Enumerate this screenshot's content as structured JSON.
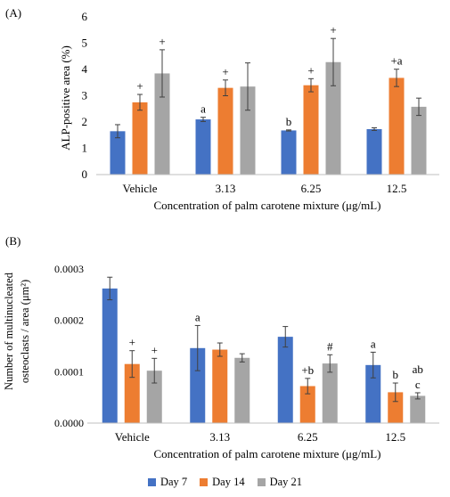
{
  "chart_data": [
    {
      "type": "bar",
      "panel_label": "(A)",
      "categories": [
        "Vehicle",
        "3.13",
        "6.25",
        "12.5"
      ],
      "xlabel": "Concentration  of palm carotene mixture  (μg/mL)",
      "ylabel": "ALP-positive  area (%)",
      "ylim": [
        0,
        6
      ],
      "yticks": [
        "0",
        "1",
        "2",
        "3",
        "4",
        "5",
        "6"
      ],
      "series": [
        {
          "name": "Day 7",
          "color": "#4472c4",
          "values": [
            1.65,
            2.1,
            1.68,
            1.73
          ],
          "errors": [
            0.25,
            0.08,
            0.02,
            0.05
          ],
          "annotations": [
            "",
            "a",
            "b",
            ""
          ]
        },
        {
          "name": "Day 14",
          "color": "#ed7d31",
          "values": [
            2.75,
            3.3,
            3.4,
            3.68
          ],
          "errors": [
            0.3,
            0.3,
            0.25,
            0.33
          ],
          "annotations": [
            "+",
            "+",
            "+",
            "+a"
          ]
        },
        {
          "name": "Day 21",
          "color": "#a5a5a5",
          "values": [
            3.85,
            3.35,
            4.28,
            2.58
          ],
          "errors": [
            0.9,
            0.9,
            0.9,
            0.33
          ],
          "annotations": [
            "+",
            "",
            "+",
            ""
          ]
        }
      ]
    },
    {
      "type": "bar",
      "panel_label": "(B)",
      "categories": [
        "Vehicle",
        "3.13",
        "6.25",
        "12.5"
      ],
      "xlabel": "Concentration  of palm carotene mixture  (μg/mL)",
      "ylabel_line1": "Number of multinucleated",
      "ylabel_line2": "osteoclasts / area (μm²)",
      "ylim": [
        0,
        0.0003
      ],
      "yticks": [
        "0.0000",
        "0.0001",
        "0.0002",
        "0.0003"
      ],
      "series": [
        {
          "name": "Day 7",
          "color": "#4472c4",
          "values": [
            0.000262,
            0.000146,
            0.000168,
            0.000113
          ],
          "errors": [
            2.2e-05,
            4.4e-05,
            2e-05,
            2.5e-05
          ],
          "annotations": [
            "",
            "a",
            "",
            "a"
          ]
        },
        {
          "name": "Day 14",
          "color": "#ed7d31",
          "values": [
            0.000115,
            0.000143,
            7.2e-05,
            6e-05
          ],
          "errors": [
            2.6e-05,
            1.3e-05,
            1.5e-05,
            1.8e-05
          ],
          "annotations": [
            "+",
            "",
            "+b",
            "b"
          ]
        },
        {
          "name": "Day 21",
          "color": "#a5a5a5",
          "values": [
            0.000102,
            0.000127,
            0.000116,
            5.3e-05
          ],
          "errors": [
            2.4e-05,
            8e-06,
            1.7e-05,
            6e-06
          ],
          "annotations": [
            "+",
            "",
            "#",
            "c"
          ]
        }
      ],
      "extra_annotations": [
        {
          "category": "12.5",
          "series": "Day 21",
          "text": "ab"
        }
      ]
    }
  ],
  "legend": [
    {
      "label": "Day 7",
      "color": "#4472c4"
    },
    {
      "label": "Day 14",
      "color": "#ed7d31"
    },
    {
      "label": "Day 21",
      "color": "#a5a5a5"
    }
  ]
}
